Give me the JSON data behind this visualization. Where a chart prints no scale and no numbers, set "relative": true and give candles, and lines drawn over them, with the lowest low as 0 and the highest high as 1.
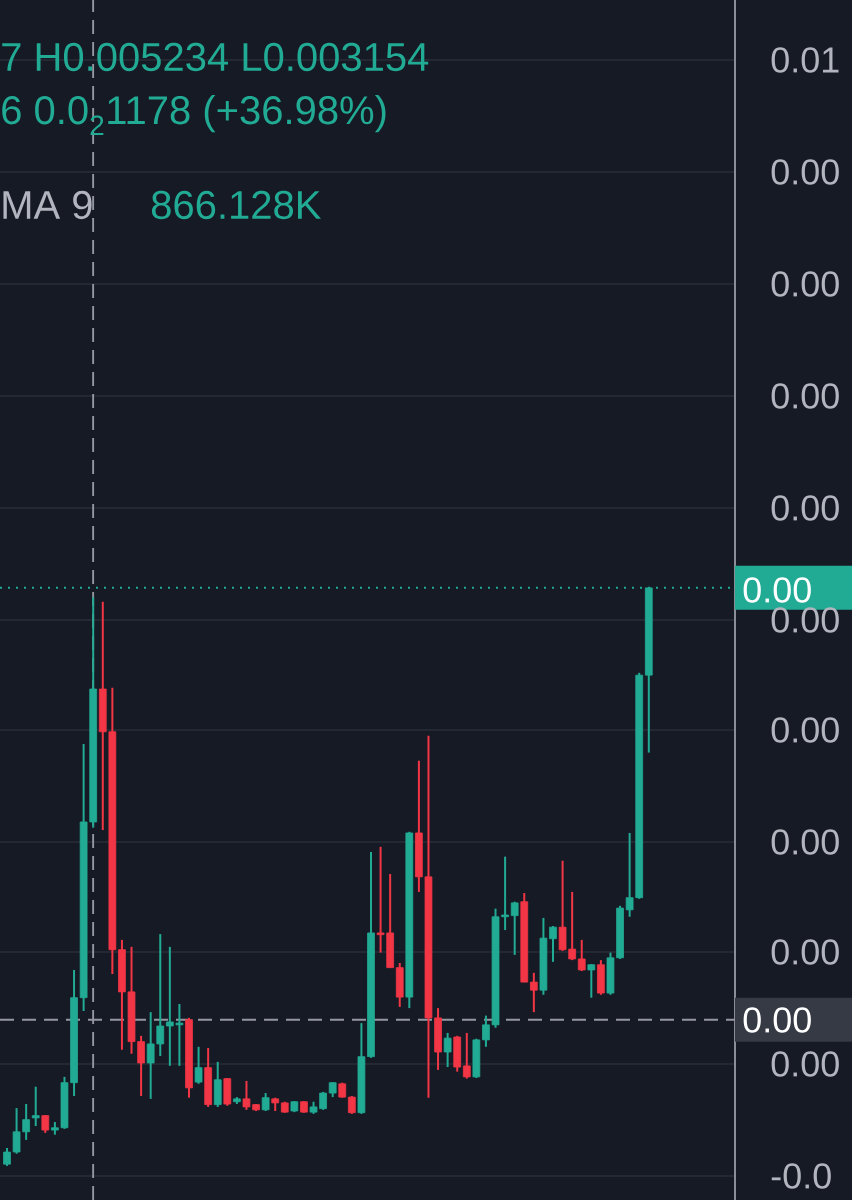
{
  "chart_data": {
    "type": "candlestick",
    "relative": true,
    "grid": "y",
    "categories": [
      null,
      null,
      null,
      null,
      null,
      null,
      null,
      null,
      null,
      null,
      null,
      null,
      null,
      null,
      null,
      null,
      null,
      null,
      null,
      null,
      null,
      null,
      null,
      null,
      null,
      null,
      null,
      null,
      null,
      null,
      null,
      null,
      null,
      null,
      null,
      null,
      null,
      null,
      null,
      null,
      null,
      null,
      null,
      null,
      null,
      null,
      null,
      null,
      null,
      null,
      null,
      null,
      null,
      null,
      null,
      null,
      null,
      null,
      null,
      null,
      null,
      null,
      null,
      null,
      null,
      null,
      null,
      null
    ],
    "ohlc": [
      [
        0.003,
        0.031,
        0,
        0.024
      ],
      [
        0.024,
        0.1,
        0.021,
        0.059
      ],
      [
        0.059,
        0.107,
        0.045,
        0.08
      ],
      [
        0.083,
        0.137,
        0.069,
        0.087
      ],
      [
        0.087,
        0.088,
        0.057,
        0.062
      ],
      [
        0.062,
        0.076,
        0.054,
        0.066
      ],
      [
        0.066,
        0.154,
        0.064,
        0.144
      ],
      [
        0.144,
        0.339,
        0.121,
        0.291
      ],
      [
        0.291,
        0.73,
        0.268,
        0.595
      ],
      [
        0.595,
        0.984,
        0.585,
        0.825
      ],
      [
        0.825,
        0.976,
        0.581,
        0.751
      ],
      [
        0.751,
        0.827,
        0.332,
        0.374
      ],
      [
        0.374,
        0.391,
        0.201,
        0.301
      ],
      [
        0.301,
        0.379,
        0.194,
        0.215
      ],
      [
        0.215,
        0.225,
        0.121,
        0.178
      ],
      [
        0.178,
        0.266,
        0.116,
        0.211
      ],
      [
        0.211,
        0.401,
        0.19,
        0.242
      ],
      [
        0.242,
        0.379,
        0.173,
        0.249
      ],
      [
        0.244,
        0.28,
        0.173,
        0.247
      ],
      [
        0.253,
        0.256,
        0.118,
        0.135
      ],
      [
        0.145,
        0.206,
        0.142,
        0.17
      ],
      [
        0.17,
        0.204,
        0.102,
        0.106
      ],
      [
        0.106,
        0.18,
        0.102,
        0.149
      ],
      [
        0.151,
        0.152,
        0.104,
        0.107
      ],
      [
        0.111,
        0.119,
        0.107,
        0.116
      ],
      [
        0.116,
        0.147,
        0.097,
        0.102
      ],
      [
        0.106,
        0.107,
        0.095,
        0.097
      ],
      [
        0.097,
        0.126,
        0.095,
        0.118
      ],
      [
        0.116,
        0.118,
        0.095,
        0.109
      ],
      [
        0.109,
        0.111,
        0.092,
        0.093
      ],
      [
        0.095,
        0.112,
        0.093,
        0.111
      ],
      [
        0.111,
        0.112,
        0.092,
        0.093
      ],
      [
        0.093,
        0.111,
        0.09,
        0.102
      ],
      [
        0.099,
        0.128,
        0.097,
        0.126
      ],
      [
        0.126,
        0.145,
        0.119,
        0.144
      ],
      [
        0.142,
        0.144,
        0.118,
        0.119
      ],
      [
        0.119,
        0.121,
        0.09,
        0.092
      ],
      [
        0.092,
        0.247,
        0.09,
        0.189
      ],
      [
        0.189,
        0.543,
        0.187,
        0.403
      ],
      [
        0.403,
        0.552,
        0.369,
        0.4
      ],
      [
        0.403,
        0.505,
        0.343,
        0.343
      ],
      [
        0.343,
        0.351,
        0.275,
        0.292
      ],
      [
        0.292,
        0.578,
        0.273,
        0.576
      ],
      [
        0.576,
        0.701,
        0.474,
        0.5
      ],
      [
        0.5,
        0.744,
        0.118,
        0.256
      ],
      [
        0.256,
        0.273,
        0.166,
        0.197
      ],
      [
        0.197,
        0.23,
        0.171,
        0.221
      ],
      [
        0.223,
        0.225,
        0.163,
        0.171
      ],
      [
        0.173,
        0.23,
        0.151,
        0.154
      ],
      [
        0.154,
        0.22,
        0.152,
        0.218
      ],
      [
        0.218,
        0.26,
        0.206,
        0.244
      ],
      [
        0.244,
        0.445,
        0.239,
        0.431
      ],
      [
        0.431,
        0.535,
        0.408,
        0.434
      ],
      [
        0.433,
        0.457,
        0.365,
        0.455
      ],
      [
        0.457,
        0.472,
        0.318,
        0.318
      ],
      [
        0.318,
        0.334,
        0.266,
        0.304
      ],
      [
        0.304,
        0.429,
        0.296,
        0.394
      ],
      [
        0.393,
        0.415,
        0.353,
        0.413
      ],
      [
        0.413,
        0.528,
        0.372,
        0.374
      ],
      [
        0.375,
        0.474,
        0.356,
        0.358
      ],
      [
        0.358,
        0.391,
        0.337,
        0.339
      ],
      [
        0.339,
        0.349,
        0.291,
        0.348
      ],
      [
        0.348,
        0.356,
        0.296,
        0.299
      ],
      [
        0.299,
        0.369,
        0.296,
        0.36
      ],
      [
        0.36,
        0.45,
        0.358,
        0.446
      ],
      [
        0.443,
        0.576,
        0.431,
        0.464
      ],
      [
        0.464,
        0.853,
        0.462,
        0.849
      ],
      [
        0.849,
        1,
        0.715,
        1
      ]
    ],
    "colors": [
      "#22ab94",
      "#22ab94",
      "#22ab94",
      "#22ab94",
      "#f23645",
      "#22ab94",
      "#22ab94",
      "#22ab94",
      "#22ab94",
      "#22ab94",
      "#f23645",
      "#f23645",
      "#f23645",
      "#f23645",
      "#f23645",
      "#22ab94",
      "#22ab94",
      "#22ab94",
      "#22ab94",
      "#f23645",
      "#22ab94",
      "#f23645",
      "#22ab94",
      "#f23645",
      "#22ab94",
      "#f23645",
      "#f23645",
      "#22ab94",
      "#f23645",
      "#f23645",
      "#22ab94",
      "#f23645",
      "#22ab94",
      "#22ab94",
      "#22ab94",
      "#f23645",
      "#f23645",
      "#22ab94",
      "#22ab94",
      "#f23645",
      "#f23645",
      "#f23645",
      "#22ab94",
      "#f23645",
      "#f23645",
      "#f23645",
      "#22ab94",
      "#f23645",
      "#f23645",
      "#22ab94",
      "#22ab94",
      "#22ab94",
      "#22ab94",
      "#22ab94",
      "#f23645",
      "#f23645",
      "#22ab94",
      "#22ab94",
      "#f23645",
      "#f23645",
      "#f23645",
      "#22ab94",
      "#f23645",
      "#22ab94",
      "#22ab94",
      "#22ab94",
      "#22ab94",
      "#22ab94"
    ],
    "ref_lines": [
      {
        "axis": "y",
        "value": 1,
        "color": "#22ab94",
        "line_style": "dotted"
      },
      {
        "axis": "y",
        "value": 0.253,
        "color": "#9598a1",
        "line_style": "dashed"
      }
    ],
    "annotations": [
      "7 H0.005234 L0.003154",
      "6 0.0$_{2}$1178 (+36.98%)",
      "MA 9",
      "866.128K",
      "0.01",
      "0.00",
      "0.00",
      "0.00",
      "0.00",
      "0.00",
      "0.00",
      "0.00",
      "0.00",
      "0.00",
      "-0.0",
      "0.00",
      "0.00"
    ]
  }
}
